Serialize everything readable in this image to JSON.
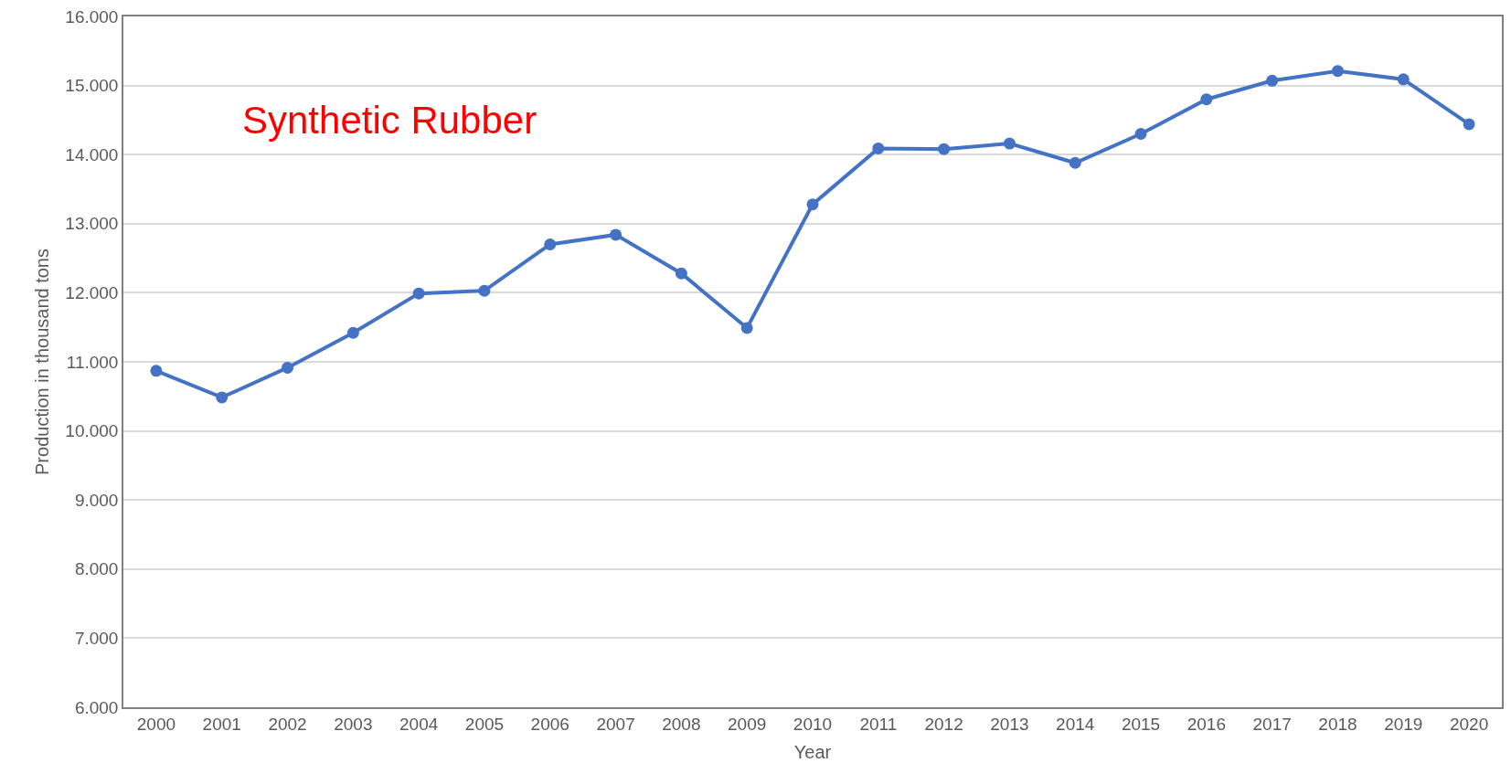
{
  "chart_data": {
    "type": "line",
    "title": "Synthetic Rubber",
    "xlabel": "Year",
    "ylabel": "Production in thousand tons",
    "categories": [
      "2000",
      "2001",
      "2002",
      "2003",
      "2004",
      "2005",
      "2006",
      "2007",
      "2008",
      "2009",
      "2010",
      "2011",
      "2012",
      "2013",
      "2014",
      "2015",
      "2016",
      "2017",
      "2018",
      "2019",
      "2020"
    ],
    "series": [
      {
        "color": "#4472c4",
        "values": [
          10870,
          10485,
          10915,
          11420,
          11990,
          12030,
          12700,
          12840,
          12280,
          11490,
          13280,
          14090,
          14080,
          14160,
          13880,
          14300,
          14800,
          15070,
          15210,
          15090,
          14440
        ]
      }
    ],
    "ylim": [
      6000,
      16000
    ],
    "yticks": [
      {
        "value": 6000,
        "label": "6.000"
      },
      {
        "value": 7000,
        "label": "7.000"
      },
      {
        "value": 8000,
        "label": "8.000"
      },
      {
        "value": 9000,
        "label": "9.000"
      },
      {
        "value": 10000,
        "label": "10.000"
      },
      {
        "value": 11000,
        "label": "11.000"
      },
      {
        "value": 12000,
        "label": "12.000"
      },
      {
        "value": 13000,
        "label": "13.000"
      },
      {
        "value": 14000,
        "label": "14.000"
      },
      {
        "value": 15000,
        "label": "15.000"
      },
      {
        "value": 16000,
        "label": "16.000"
      }
    ],
    "grid": "y",
    "marker": "circle",
    "line_style": "solid",
    "legend": false
  }
}
